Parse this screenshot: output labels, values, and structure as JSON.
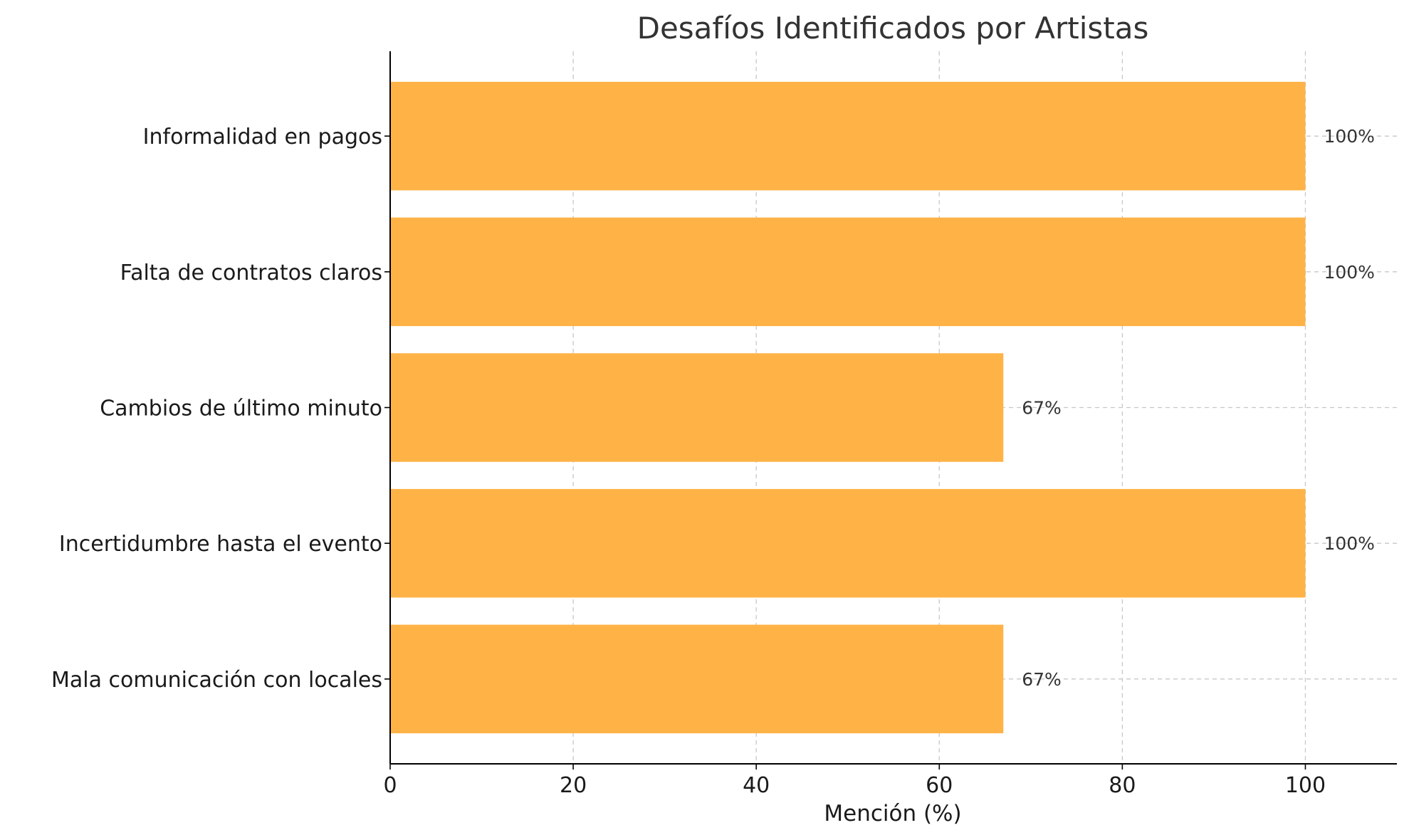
{
  "chart_data": {
    "type": "bar",
    "orientation": "horizontal",
    "title": "Desafíos Identificados por Artistas",
    "xlabel": "Mención (%)",
    "ylabel": "",
    "categories": [
      "Informalidad en pagos",
      "Falta de contratos claros",
      "Cambios de último minuto",
      "Incertidumbre hasta el evento",
      "Mala comunicación con locales"
    ],
    "values": [
      100,
      100,
      67,
      100,
      67
    ],
    "data_labels": [
      "100%",
      "100%",
      "67%",
      "100%",
      "67%"
    ],
    "xlim": [
      0,
      110
    ],
    "xticks": [
      0,
      20,
      40,
      60,
      80,
      100
    ],
    "grid": true,
    "bar_color": "#ffb347"
  }
}
